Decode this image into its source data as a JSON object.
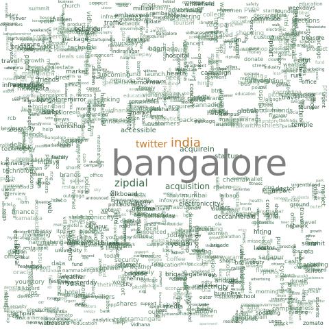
{
  "cloud": {
    "primary_word": "bangalore",
    "secondary_words": [
      "twitter",
      "india"
    ],
    "notable_words": [
      "zipdial",
      "acquisition",
      "acquirein",
      "accessible",
      "startups"
    ],
    "colors": {
      "primary": "#7f7f7f",
      "secondary": "#c87a27",
      "words_dark": "#2f5a3c",
      "words_mid": "#5f8a6a",
      "words_light": "#8fae95",
      "background": "#ffffff"
    },
    "background_words": [
      "walkwithakhilesh",
      "programmer",
      "kannada",
      "bangalore",
      "startup",
      "villiers",
      "package",
      "treasure",
      "thursday",
      "sky",
      "thetimes",
      "upcoming",
      "speaking",
      "vegetables",
      "tired",
      "business",
      "shorts",
      "rallies",
      "stock",
      "lights",
      "yoga",
      "urgentblood",
      "beyond",
      "technology",
      "jobs",
      "fund",
      "metro",
      "ground",
      "traffic",
      "music",
      "event",
      "photography",
      "weekend",
      "shopping",
      "mobile",
      "clicking",
      "dedicated",
      "office",
      "founder",
      "delhi",
      "mumbai",
      "chennai",
      "hyderabad",
      "pune",
      "kolkata",
      "marathahalli",
      "whitefield",
      "koramangala",
      "indiranagar",
      "jayanagar",
      "malleswaram",
      "rains",
      "weather",
      "cricket",
      "match",
      "stadium",
      "movie",
      "release",
      "concert",
      "festival",
      "food",
      "restaurant",
      "coffee",
      "beer",
      "brewery",
      "pub",
      "party",
      "friends",
      "family",
      "birthday",
      "morning",
      "evening",
      "night",
      "today",
      "tomorrow",
      "yesterday",
      "weekdays",
      "payments",
      "ecommerce",
      "customers",
      "service",
      "support",
      "engineering",
      "design",
      "product",
      "growth",
      "marketing",
      "sales",
      "hiring",
      "interview",
      "career",
      "opportunity",
      "announce",
      "launch",
      "update",
      "news",
      "report",
      "media",
      "press",
      "campus",
      "college",
      "university",
      "students",
      "school",
      "education",
      "training",
      "workshop",
      "meetup",
      "conference",
      "summit",
      "hackathon",
      "demo",
      "pitch",
      "investor",
      "funding",
      "acquired",
      "deal",
      "team",
      "ceo",
      "cto",
      "social",
      "network",
      "analytics",
      "data",
      "cloud",
      "security",
      "android",
      "ios",
      "app",
      "web",
      "online",
      "digital",
      "global",
      "local",
      "city",
      "road",
      "bus",
      "auto",
      "cab",
      "airport",
      "flight",
      "travel",
      "hotel",
      "tourism",
      "temple",
      "palace",
      "garden",
      "lalbagh",
      "cubbon",
      "park",
      "lake",
      "walk",
      "run",
      "marathon",
      "cycle",
      "fitness",
      "health",
      "hospital",
      "doctor",
      "blood",
      "donate",
      "help",
      "urgent",
      "police",
      "safety",
      "women",
      "men",
      "kids",
      "children",
      "elections",
      "vote",
      "government",
      "minister",
      "bbmp",
      "citizens",
      "garbage",
      "water",
      "power",
      "electricity",
      "housing",
      "rent",
      "apartment",
      "property",
      "realestate",
      "construction",
      "building",
      "infrastructure",
      "flyover",
      "signal",
      "jam",
      "commute",
      "office",
      "work",
      "job",
      "salary",
      "company",
      "companies",
      "firm",
      "industry",
      "market",
      "shares",
      "growth",
      "revenue",
      "profit",
      "loss",
      "bank",
      "finance",
      "money",
      "payment",
      "cash",
      "wallet",
      "mobilepay",
      "missedcall",
      "calls",
      "marketing",
      "brands",
      "advertising",
      "campaign",
      "consumers",
      "users",
      "million",
      "billion",
      "deals",
      "announced",
      "acquires",
      "official",
      "flipkart",
      "amazon",
      "ola",
      "uber",
      "swiggy",
      "zomato",
      "infosys",
      "wipro",
      "google",
      "microsoft",
      "intel",
      "ibm",
      "cisco",
      "oracle",
      "sap",
      "nasscom",
      "ibmindia",
      "startupindia",
      "tech",
      "techcrunch",
      "yourstory",
      "economictimes",
      "thehindu",
      "deccanherald",
      "ndtv",
      "reuters",
      "bangaloremirror",
      "bengaluru",
      "karnataka",
      "kannadiga",
      "namma",
      "nammabengaluru",
      "nammametro",
      "rcb",
      "ipl",
      "chinnaswamy",
      "brigade",
      "mgroad",
      "church",
      "street",
      "commercial",
      "residency",
      "ulsoor",
      "hebbal",
      "yelahanka",
      "electronic",
      "electroniccity",
      "silkboard",
      "btm",
      "hsr",
      "bellandur",
      "sarjapur",
      "outer",
      "ring",
      "orr",
      "itpl",
      "manyata",
      "embassy",
      "techpark",
      "bagmane",
      "prestige",
      "sobha",
      "brigadegateway",
      "orion",
      "phoenix",
      "forum",
      "garuda",
      "ub",
      "city",
      "ubcity",
      "vidhana",
      "soudha",
      "vidhanasoudha"
    ]
  }
}
